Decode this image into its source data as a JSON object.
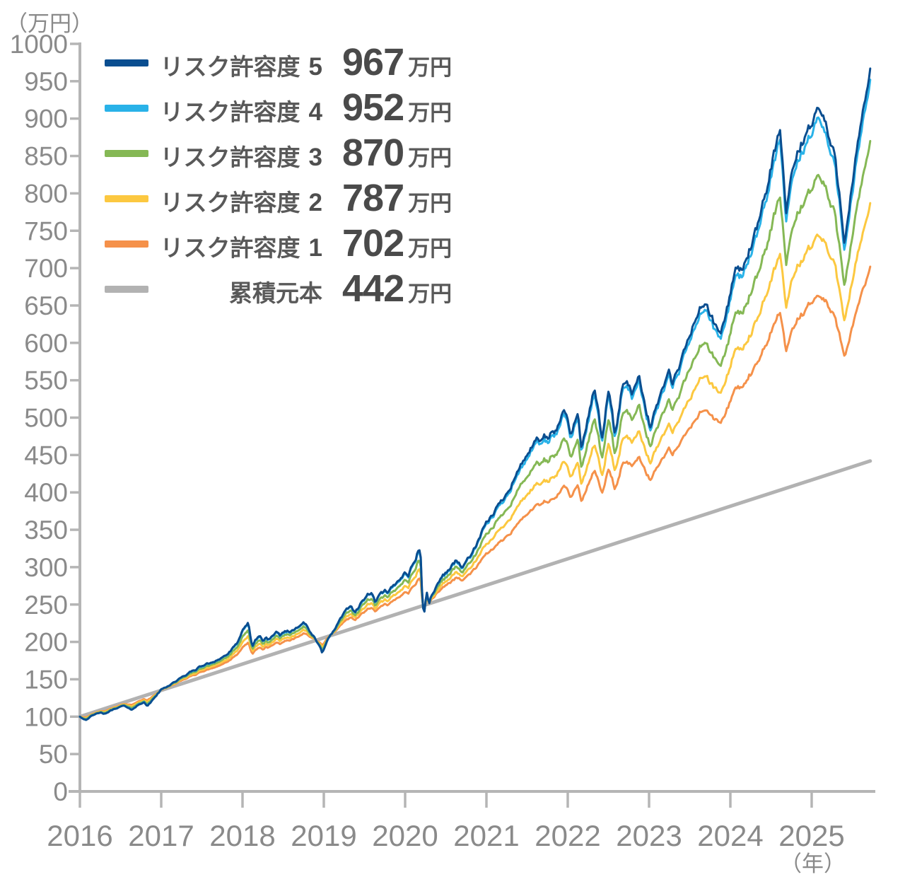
{
  "y_axis_unit": "（万円）",
  "x_axis_unit": "（年）",
  "legend": [
    {
      "label": "リスク許容度",
      "digit": "5",
      "value": "967",
      "unit": "万円",
      "color": "#0a4e90"
    },
    {
      "label": "リスク許容度",
      "digit": "4",
      "value": "952",
      "unit": "万円",
      "color": "#29b2e8"
    },
    {
      "label": "リスク許容度",
      "digit": "3",
      "value": "870",
      "unit": "万円",
      "color": "#85b855"
    },
    {
      "label": "リスク許容度",
      "digit": "2",
      "value": "787",
      "unit": "万円",
      "color": "#fcc840"
    },
    {
      "label": "リスク許容度",
      "digit": "1",
      "value": "702",
      "unit": "万円",
      "color": "#f5914a"
    },
    {
      "label": "累積元本",
      "digit": "",
      "value": "442",
      "unit": "万円",
      "color": "#b2b2b2"
    }
  ],
  "axes": {
    "y_ticks": [
      0,
      50,
      100,
      150,
      200,
      250,
      300,
      350,
      400,
      450,
      500,
      550,
      600,
      650,
      700,
      750,
      800,
      850,
      900,
      950,
      1000
    ],
    "x_ticks": [
      2016,
      2017,
      2018,
      2019,
      2020,
      2021,
      2022,
      2023,
      2024,
      2025
    ],
    "y_label_color": "#8a8a8a",
    "axis_color": "#b5b5b5"
  },
  "chart_data": {
    "type": "line",
    "title": "",
    "xlabel": "年",
    "ylabel": "万円",
    "x_range": [
      2016,
      2025.72
    ],
    "ylim": [
      0,
      1000
    ],
    "grid": false,
    "legend_position": "top-left",
    "derivation_note": "series with blend_factor are computed as principal(t) + (risk5(t) - principal(t)) * blend_factor; principal is the straight 累積元本 line",
    "series": [
      {
        "name": "リスク許容度5",
        "color": "#0a4e90",
        "final_value_man_yen": 967,
        "anchors": [
          [
            2016.0,
            100
          ],
          [
            2016.04,
            97
          ],
          [
            2016.08,
            96
          ],
          [
            2016.13,
            100
          ],
          [
            2016.17,
            102
          ],
          [
            2016.21,
            104
          ],
          [
            2016.25,
            106
          ],
          [
            2016.29,
            103
          ],
          [
            2016.33,
            105
          ],
          [
            2016.38,
            108
          ],
          [
            2016.42,
            110
          ],
          [
            2016.46,
            112
          ],
          [
            2016.5,
            113
          ],
          [
            2016.54,
            115
          ],
          [
            2016.58,
            112
          ],
          [
            2016.63,
            109
          ],
          [
            2016.67,
            112
          ],
          [
            2016.71,
            115
          ],
          [
            2016.75,
            117
          ],
          [
            2016.79,
            120
          ],
          [
            2016.83,
            114
          ],
          [
            2016.88,
            120
          ],
          [
            2016.92,
            126
          ],
          [
            2016.96,
            131
          ],
          [
            2017.0,
            136
          ],
          [
            2017.08,
            141
          ],
          [
            2017.17,
            147
          ],
          [
            2017.25,
            152
          ],
          [
            2017.33,
            158
          ],
          [
            2017.42,
            163
          ],
          [
            2017.5,
            168
          ],
          [
            2017.58,
            171
          ],
          [
            2017.67,
            175
          ],
          [
            2017.75,
            179
          ],
          [
            2017.83,
            185
          ],
          [
            2017.92,
            196
          ],
          [
            2018.0,
            214
          ],
          [
            2018.04,
            220
          ],
          [
            2018.07,
            226
          ],
          [
            2018.12,
            194
          ],
          [
            2018.17,
            204
          ],
          [
            2018.21,
            209
          ],
          [
            2018.25,
            201
          ],
          [
            2018.29,
            206
          ],
          [
            2018.33,
            203
          ],
          [
            2018.38,
            208
          ],
          [
            2018.42,
            212
          ],
          [
            2018.46,
            209
          ],
          [
            2018.5,
            213
          ],
          [
            2018.54,
            215
          ],
          [
            2018.58,
            213
          ],
          [
            2018.63,
            217
          ],
          [
            2018.67,
            220
          ],
          [
            2018.71,
            224
          ],
          [
            2018.75,
            227
          ],
          [
            2018.79,
            221
          ],
          [
            2018.83,
            213
          ],
          [
            2018.88,
            206
          ],
          [
            2018.92,
            198
          ],
          [
            2018.96,
            192
          ],
          [
            2018.98,
            186
          ],
          [
            2019.04,
            202
          ],
          [
            2019.08,
            208
          ],
          [
            2019.13,
            216
          ],
          [
            2019.17,
            224
          ],
          [
            2019.21,
            232
          ],
          [
            2019.25,
            238
          ],
          [
            2019.29,
            244
          ],
          [
            2019.33,
            248
          ],
          [
            2019.38,
            241
          ],
          [
            2019.42,
            245
          ],
          [
            2019.46,
            252
          ],
          [
            2019.5,
            258
          ],
          [
            2019.54,
            263
          ],
          [
            2019.58,
            266
          ],
          [
            2019.63,
            254
          ],
          [
            2019.67,
            260
          ],
          [
            2019.71,
            265
          ],
          [
            2019.75,
            268
          ],
          [
            2019.79,
            264
          ],
          [
            2019.83,
            272
          ],
          [
            2019.88,
            277
          ],
          [
            2019.92,
            283
          ],
          [
            2019.96,
            288
          ],
          [
            2020.0,
            293
          ],
          [
            2020.04,
            290
          ],
          [
            2020.08,
            300
          ],
          [
            2020.13,
            312
          ],
          [
            2020.17,
            326
          ],
          [
            2020.19,
            318
          ],
          [
            2020.21,
            262
          ],
          [
            2020.23,
            233
          ],
          [
            2020.25,
            255
          ],
          [
            2020.27,
            266
          ],
          [
            2020.29,
            250
          ],
          [
            2020.33,
            264
          ],
          [
            2020.38,
            272
          ],
          [
            2020.42,
            282
          ],
          [
            2020.46,
            288
          ],
          [
            2020.5,
            293
          ],
          [
            2020.54,
            297
          ],
          [
            2020.58,
            303
          ],
          [
            2020.63,
            310
          ],
          [
            2020.67,
            305
          ],
          [
            2020.71,
            298
          ],
          [
            2020.75,
            308
          ],
          [
            2020.79,
            315
          ],
          [
            2020.83,
            320
          ],
          [
            2020.88,
            330
          ],
          [
            2020.92,
            340
          ],
          [
            2020.96,
            350
          ],
          [
            2021.0,
            358
          ],
          [
            2021.08,
            372
          ],
          [
            2021.17,
            386
          ],
          [
            2021.25,
            400
          ],
          [
            2021.33,
            416
          ],
          [
            2021.42,
            435
          ],
          [
            2021.5,
            452
          ],
          [
            2021.58,
            462
          ],
          [
            2021.63,
            472
          ],
          [
            2021.67,
            466
          ],
          [
            2021.71,
            478
          ],
          [
            2021.75,
            470
          ],
          [
            2021.79,
            480
          ],
          [
            2021.83,
            476
          ],
          [
            2021.88,
            488
          ],
          [
            2021.92,
            500
          ],
          [
            2021.96,
            508
          ],
          [
            2022.0,
            500
          ],
          [
            2022.04,
            478
          ],
          [
            2022.08,
            492
          ],
          [
            2022.13,
            505
          ],
          [
            2022.17,
            458
          ],
          [
            2022.21,
            478
          ],
          [
            2022.25,
            498
          ],
          [
            2022.29,
            520
          ],
          [
            2022.33,
            540
          ],
          [
            2022.38,
            505
          ],
          [
            2022.42,
            470
          ],
          [
            2022.46,
            505
          ],
          [
            2022.5,
            535
          ],
          [
            2022.54,
            512
          ],
          [
            2022.58,
            478
          ],
          [
            2022.63,
            508
          ],
          [
            2022.67,
            540
          ],
          [
            2022.71,
            552
          ],
          [
            2022.75,
            545
          ],
          [
            2022.79,
            528
          ],
          [
            2022.83,
            548
          ],
          [
            2022.88,
            556
          ],
          [
            2022.92,
            535
          ],
          [
            2022.96,
            512
          ],
          [
            2023.0,
            495
          ],
          [
            2023.02,
            483
          ],
          [
            2023.08,
            512
          ],
          [
            2023.13,
            528
          ],
          [
            2023.17,
            540
          ],
          [
            2023.21,
            552
          ],
          [
            2023.25,
            560
          ],
          [
            2023.29,
            546
          ],
          [
            2023.33,
            556
          ],
          [
            2023.38,
            568
          ],
          [
            2023.42,
            584
          ],
          [
            2023.46,
            598
          ],
          [
            2023.5,
            610
          ],
          [
            2023.54,
            622
          ],
          [
            2023.58,
            634
          ],
          [
            2023.63,
            645
          ],
          [
            2023.67,
            650
          ],
          [
            2023.71,
            653
          ],
          [
            2023.75,
            640
          ],
          [
            2023.79,
            628
          ],
          [
            2023.83,
            618
          ],
          [
            2023.88,
            612
          ],
          [
            2023.92,
            628
          ],
          [
            2023.96,
            645
          ],
          [
            2024.0,
            668
          ],
          [
            2024.04,
            690
          ],
          [
            2024.08,
            700
          ],
          [
            2024.13,
            696
          ],
          [
            2024.17,
            706
          ],
          [
            2024.21,
            716
          ],
          [
            2024.25,
            728
          ],
          [
            2024.29,
            740
          ],
          [
            2024.33,
            752
          ],
          [
            2024.38,
            772
          ],
          [
            2024.42,
            792
          ],
          [
            2024.46,
            812
          ],
          [
            2024.5,
            835
          ],
          [
            2024.54,
            856
          ],
          [
            2024.58,
            872
          ],
          [
            2024.61,
            881
          ],
          [
            2024.64,
            845
          ],
          [
            2024.67,
            800
          ],
          [
            2024.69,
            765
          ],
          [
            2024.71,
            792
          ],
          [
            2024.75,
            820
          ],
          [
            2024.79,
            838
          ],
          [
            2024.83,
            856
          ],
          [
            2024.88,
            866
          ],
          [
            2024.92,
            877
          ],
          [
            2024.96,
            886
          ],
          [
            2025.0,
            895
          ],
          [
            2025.04,
            908
          ],
          [
            2025.08,
            913
          ],
          [
            2025.13,
            905
          ],
          [
            2025.17,
            895
          ],
          [
            2025.21,
            875
          ],
          [
            2025.25,
            858
          ],
          [
            2025.29,
            846
          ],
          [
            2025.33,
            812
          ],
          [
            2025.37,
            772
          ],
          [
            2025.4,
            738
          ],
          [
            2025.42,
            752
          ],
          [
            2025.46,
            782
          ],
          [
            2025.5,
            812
          ],
          [
            2025.54,
            842
          ],
          [
            2025.58,
            872
          ],
          [
            2025.63,
            902
          ],
          [
            2025.67,
            932
          ],
          [
            2025.7,
            950
          ],
          [
            2025.72,
            967
          ]
        ]
      },
      {
        "name": "リスク許容度4",
        "color": "#29b2e8",
        "final_value_man_yen": 952,
        "derived_from": "リスク許容度5",
        "blend_factor": 0.9714
      },
      {
        "name": "リスク許容度3",
        "color": "#85b855",
        "final_value_man_yen": 870,
        "derived_from": "リスク許容度5",
        "blend_factor": 0.8152
      },
      {
        "name": "リスク許容度2",
        "color": "#fcc840",
        "final_value_man_yen": 787,
        "derived_from": "リスク許容度5",
        "blend_factor": 0.6571
      },
      {
        "name": "リスク許容度1",
        "color": "#f5914a",
        "final_value_man_yen": 702,
        "derived_from": "リスク許容度5",
        "blend_factor": 0.4952
      },
      {
        "name": "累積元本",
        "color": "#b2b2b2",
        "final_value_man_yen": 442,
        "straight": true,
        "anchors": [
          [
            2016.0,
            100
          ],
          [
            2025.72,
            442
          ]
        ]
      }
    ]
  }
}
